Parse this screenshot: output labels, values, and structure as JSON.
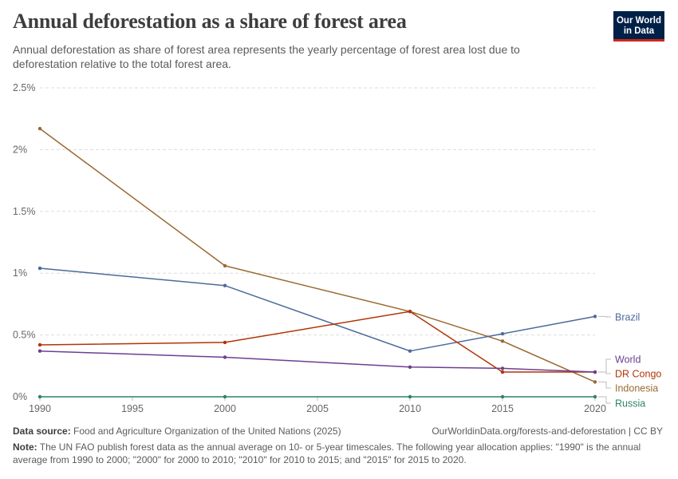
{
  "header": {
    "title": "Annual deforestation as a share of forest area",
    "subtitle": "Annual deforestation as share of forest area represents the yearly percentage of forest area lost due to deforestation relative to the total forest area.",
    "logo_line1": "Our World",
    "logo_line2": "in Data"
  },
  "chart_data": {
    "type": "line",
    "title": "Annual deforestation as a share of forest area",
    "xlabel": "",
    "ylabel": "",
    "xlim": [
      1990,
      2020
    ],
    "ylim": [
      0,
      2.5
    ],
    "x_ticks": [
      "1990",
      "1995",
      "2000",
      "2005",
      "2010",
      "2015",
      "2020"
    ],
    "y_ticks": [
      0,
      0.5,
      1,
      1.5,
      2,
      2.5
    ],
    "y_tick_labels": [
      "0%",
      "0.5%",
      "1%",
      "1.5%",
      "2%",
      "2.5%"
    ],
    "grid": "horizontal dashed",
    "legend": "inline labels at right end of lines",
    "series": [
      {
        "name": "Indonesia",
        "color": "#9a6a32",
        "x": [
          1990,
          2000,
          2010,
          2015,
          2020
        ],
        "y": [
          2.17,
          1.06,
          0.69,
          0.45,
          0.12
        ]
      },
      {
        "name": "Brazil",
        "color": "#4c6a9c",
        "x": [
          1990,
          2000,
          2010,
          2015,
          2020
        ],
        "y": [
          1.04,
          0.9,
          0.37,
          0.51,
          0.65
        ]
      },
      {
        "name": "DR Congo",
        "color": "#b13507",
        "x": [
          1990,
          2000,
          2010,
          2015,
          2020
        ],
        "y": [
          0.42,
          0.44,
          0.69,
          0.2,
          0.2
        ]
      },
      {
        "name": "World",
        "color": "#6d3e91",
        "x": [
          1990,
          2000,
          2010,
          2015,
          2020
        ],
        "y": [
          0.37,
          0.32,
          0.24,
          0.23,
          0.2
        ]
      },
      {
        "name": "Russia",
        "color": "#2c8465",
        "x": [
          1990,
          2000,
          2010,
          2015,
          2020
        ],
        "y": [
          0.0,
          0.0,
          0.0,
          0.0,
          0.0
        ]
      }
    ]
  },
  "footer": {
    "source_label": "Data source:",
    "source_text": "Food and Agriculture Organization of the United Nations (2025)",
    "credit": "OurWorldinData.org/forests-and-deforestation | CC BY",
    "note_label": "Note:",
    "note_text": "The UN FAO publish forest data as the annual average on 10- or 5-year timescales. The following year allocation applies: \"1990\" is the annual average from 1990 to 2000; \"2000\" for 2000 to 2010; \"2010\" for 2010 to 2015; and \"2015\" for 2015 to 2020."
  }
}
